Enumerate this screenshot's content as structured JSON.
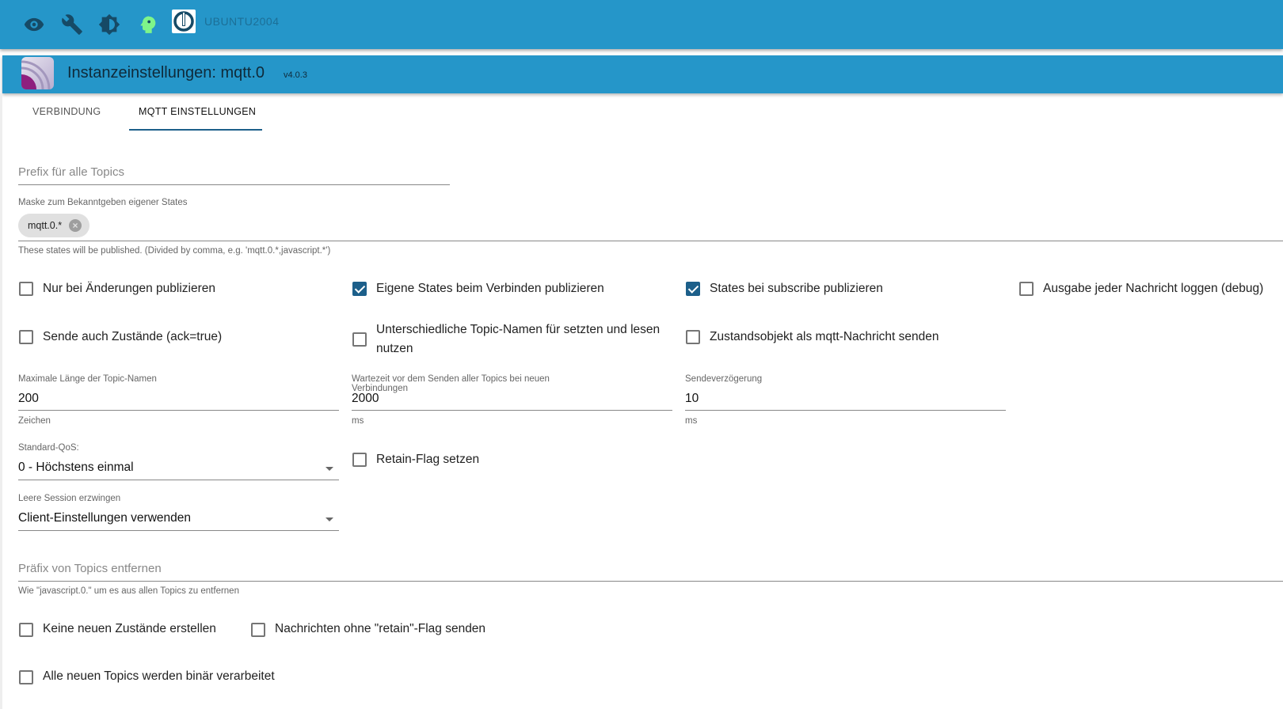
{
  "topbar": {
    "icons": [
      "eye-icon",
      "wrench-icon",
      "brightness-icon",
      "head-icon",
      "iobroker-logo-icon"
    ],
    "hostname": "UBUNTU2004",
    "accent_color": "#2596c9"
  },
  "header": {
    "title": "Instanzeinstellungen: mqtt.0",
    "version": "v4.0.3"
  },
  "tabs": [
    {
      "label": "VERBINDUNG",
      "active": false
    },
    {
      "label": "MQTT EINSTELLUNGEN",
      "active": true
    }
  ],
  "form": {
    "prefix": {
      "placeholder": "Prefix für alle Topics",
      "value": ""
    },
    "mask": {
      "label": "Maske zum Bekanntgeben eigener States",
      "chip": "mqtt.0.*",
      "help": "These states will be published. (Divided by comma, e.g. 'mqtt.0.*,javascript.*')"
    },
    "checks1": [
      {
        "label": "Nur bei Änderungen publizieren",
        "checked": false
      },
      {
        "label": "Eigene States beim Verbinden publizieren",
        "checked": true
      },
      {
        "label": "States bei subscribe publizieren",
        "checked": true
      },
      {
        "label": "Ausgabe jeder Nachricht loggen (debug)",
        "checked": false
      }
    ],
    "checks2": [
      {
        "label": "Sende auch Zustände (ack=true)",
        "checked": false
      },
      {
        "label": "Unterschiedliche Topic-Namen für setzten und lesen nutzen",
        "checked": false
      },
      {
        "label": "Zustandsobjekt als mqtt-Nachricht senden",
        "checked": false
      }
    ],
    "maxTopicLength": {
      "label": "Maximale Länge der Topic-Namen",
      "value": "200",
      "help": "Zeichen"
    },
    "sendInterval": {
      "label": "Wartezeit vor dem Senden aller Topics bei neuen Verbindungen",
      "value": "2000",
      "help": "ms"
    },
    "sendDelay": {
      "label": "Sendeverzögerung",
      "value": "10",
      "help": "ms"
    },
    "qos": {
      "label": "Standard-QoS:",
      "value": "0 - Höchstens einmal"
    },
    "retain": {
      "label": "Retain-Flag setzen",
      "checked": false
    },
    "cleanSession": {
      "label": "Leere Session erzwingen",
      "value": "Client-Einstellungen verwenden"
    },
    "removePrefix": {
      "placeholder": "Präfix von Topics entfernen",
      "value": "",
      "help": "Wie \"javascript.0.\" um es aus allen Topics zu entfernen"
    },
    "noNewObjects": {
      "label": "Keine neuen Zustände erstellen",
      "checked": false
    },
    "noRetain": {
      "label": "Nachrichten ohne \"retain\"-Flag senden",
      "checked": false
    },
    "binary": {
      "label": "Alle neuen Topics werden binär verarbeitet",
      "checked": false
    }
  }
}
